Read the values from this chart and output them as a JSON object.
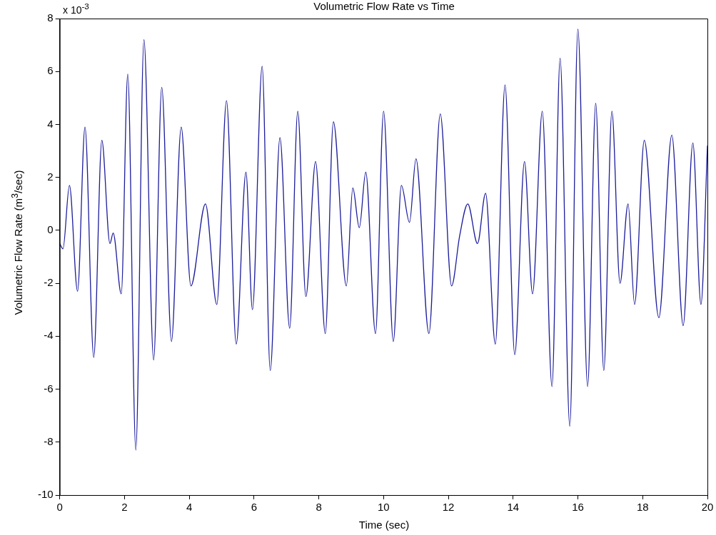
{
  "chart_data": {
    "type": "line",
    "title": "Volumetric Flow Rate vs Time",
    "xlabel": "Time (sec)",
    "ylabel": "Volumetric Flow Rate (m$^{3}$/sec)",
    "annotations": [
      "x 10$^{-3}$"
    ],
    "x": [
      0,
      0.1,
      0.3,
      0.55,
      0.78,
      1.05,
      1.3,
      1.55,
      1.65,
      1.9,
      2.1,
      2.35,
      2.6,
      2.9,
      3.15,
      3.45,
      3.75,
      4.05,
      4.5,
      4.85,
      5.15,
      5.45,
      5.75,
      5.95,
      6.25,
      6.5,
      6.8,
      7.1,
      7.35,
      7.6,
      7.9,
      8.2,
      8.45,
      8.85,
      9.05,
      9.25,
      9.45,
      9.75,
      10.0,
      10.3,
      10.55,
      10.8,
      11.0,
      11.4,
      11.75,
      12.1,
      12.35,
      12.6,
      12.9,
      13.15,
      13.45,
      13.75,
      14.05,
      14.35,
      14.6,
      14.9,
      15.2,
      15.45,
      15.75,
      16.0,
      16.3,
      16.55,
      16.8,
      17.05,
      17.3,
      17.55,
      17.75,
      18.05,
      18.5,
      18.9,
      19.25,
      19.55,
      19.8,
      20.0
    ],
    "series": [
      {
        "color": "#1c1c9c",
        "values": [
          -0.5,
          -0.7,
          1.7,
          -2.3,
          3.9,
          -4.8,
          3.4,
          -0.5,
          -0.1,
          -2.4,
          5.9,
          -8.3,
          7.2,
          -4.9,
          5.4,
          -4.2,
          3.9,
          -2.1,
          1.0,
          -2.8,
          4.9,
          -4.3,
          2.2,
          -3.0,
          6.2,
          -5.3,
          3.5,
          -3.7,
          4.5,
          -2.5,
          2.6,
          -3.9,
          4.1,
          -2.1,
          1.6,
          0.1,
          2.2,
          -3.9,
          4.5,
          -4.2,
          1.7,
          0.3,
          2.7,
          -3.9,
          4.4,
          -2.1,
          -0.2,
          1.0,
          -0.5,
          1.4,
          -4.3,
          5.5,
          -4.7,
          2.6,
          -2.4,
          4.5,
          -5.9,
          6.5,
          -7.4,
          7.6,
          -5.9,
          4.8,
          -5.3,
          4.5,
          -2.0,
          1.0,
          -2.8,
          3.4,
          -3.3,
          3.6,
          -3.6,
          3.3,
          -2.8,
          3.2
        ]
      }
    ],
    "xlim": [
      0,
      20
    ],
    "xticks": [
      0,
      2,
      4,
      6,
      8,
      10,
      12,
      14,
      16,
      18,
      20
    ],
    "ylim": [
      -10,
      8
    ],
    "yticks": [
      -10,
      -8,
      -6,
      -4,
      -2,
      0,
      2,
      4,
      6,
      8
    ],
    "grid": false,
    "legend": false,
    "marker": "none",
    "line_style": "solid"
  }
}
